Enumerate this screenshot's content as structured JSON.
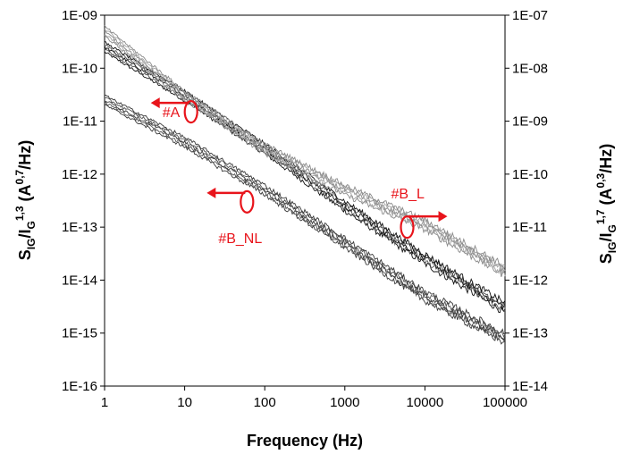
{
  "chart_data": {
    "type": "line",
    "xlabel": "Frequency (Hz)",
    "x_scale": "log",
    "xlim": [
      1,
      100000
    ],
    "x_ticks": [
      "1",
      "10",
      "100",
      "1000",
      "10000",
      "100000"
    ],
    "ylabel_left_main": "S",
    "ylabel_left_sub1": "IG",
    "ylabel_left_mid": "/I",
    "ylabel_left_sub2": "G",
    "ylabel_left_sup1": "1,3",
    "ylabel_left_unit": " (A",
    "ylabel_left_sup2": "0,7",
    "ylabel_left_end": "/Hz)",
    "y_scale": "log",
    "ylim": [
      1e-16,
      1e-09
    ],
    "y_ticks_left": [
      "1E-16",
      "1E-15",
      "1E-14",
      "1E-13",
      "1E-12",
      "1E-11",
      "1E-10",
      "1E-09"
    ],
    "ylabel_right_main": "S",
    "ylabel_right_sub1": "IG",
    "ylabel_right_mid": "/I",
    "ylabel_right_sub2": "G",
    "ylabel_right_sup1": "1,7",
    "ylabel_right_unit": " (A",
    "ylabel_right_sup2": "0,3",
    "ylabel_right_end": "/Hz)",
    "y2lim": [
      1e-14,
      1e-07
    ],
    "y_ticks_right": [
      "1E-14",
      "1E-13",
      "1E-12",
      "1E-11",
      "1E-10",
      "1E-09",
      "1E-08",
      "1E-07"
    ],
    "grid": false,
    "series": [
      {
        "label": "#A",
        "axis": "left",
        "color": "#111111",
        "x": [
          1,
          10,
          100,
          1000,
          10000,
          100000
        ],
        "y": [
          2.5e-10,
          3e-11,
          3e-12,
          2.5e-13,
          2.5e-14,
          3e-15
        ],
        "annotation": {
          "x": 12,
          "y": 1.5e-11,
          "arrow": "left"
        }
      },
      {
        "label": "#B_L",
        "axis": "right",
        "color": "#8a8a8a",
        "x": [
          1,
          10,
          100,
          1000,
          10000,
          100000
        ],
        "y": [
          5e-08,
          3e-09,
          3e-10,
          5e-11,
          1.1e-11,
          1.5e-12
        ],
        "annotation": {
          "x": 6000,
          "y": 1e-11,
          "arrow": "right"
        }
      },
      {
        "label": "#B_NL",
        "axis": "left",
        "color": "#3a3a3a",
        "x": [
          1,
          10,
          100,
          1000,
          10000,
          100000
        ],
        "y": [
          2.5e-11,
          4e-12,
          5e-13,
          5e-14,
          5e-15,
          8e-16
        ],
        "annotation": {
          "x": 60,
          "y": 3e-13,
          "arrow": "left"
        }
      }
    ]
  }
}
